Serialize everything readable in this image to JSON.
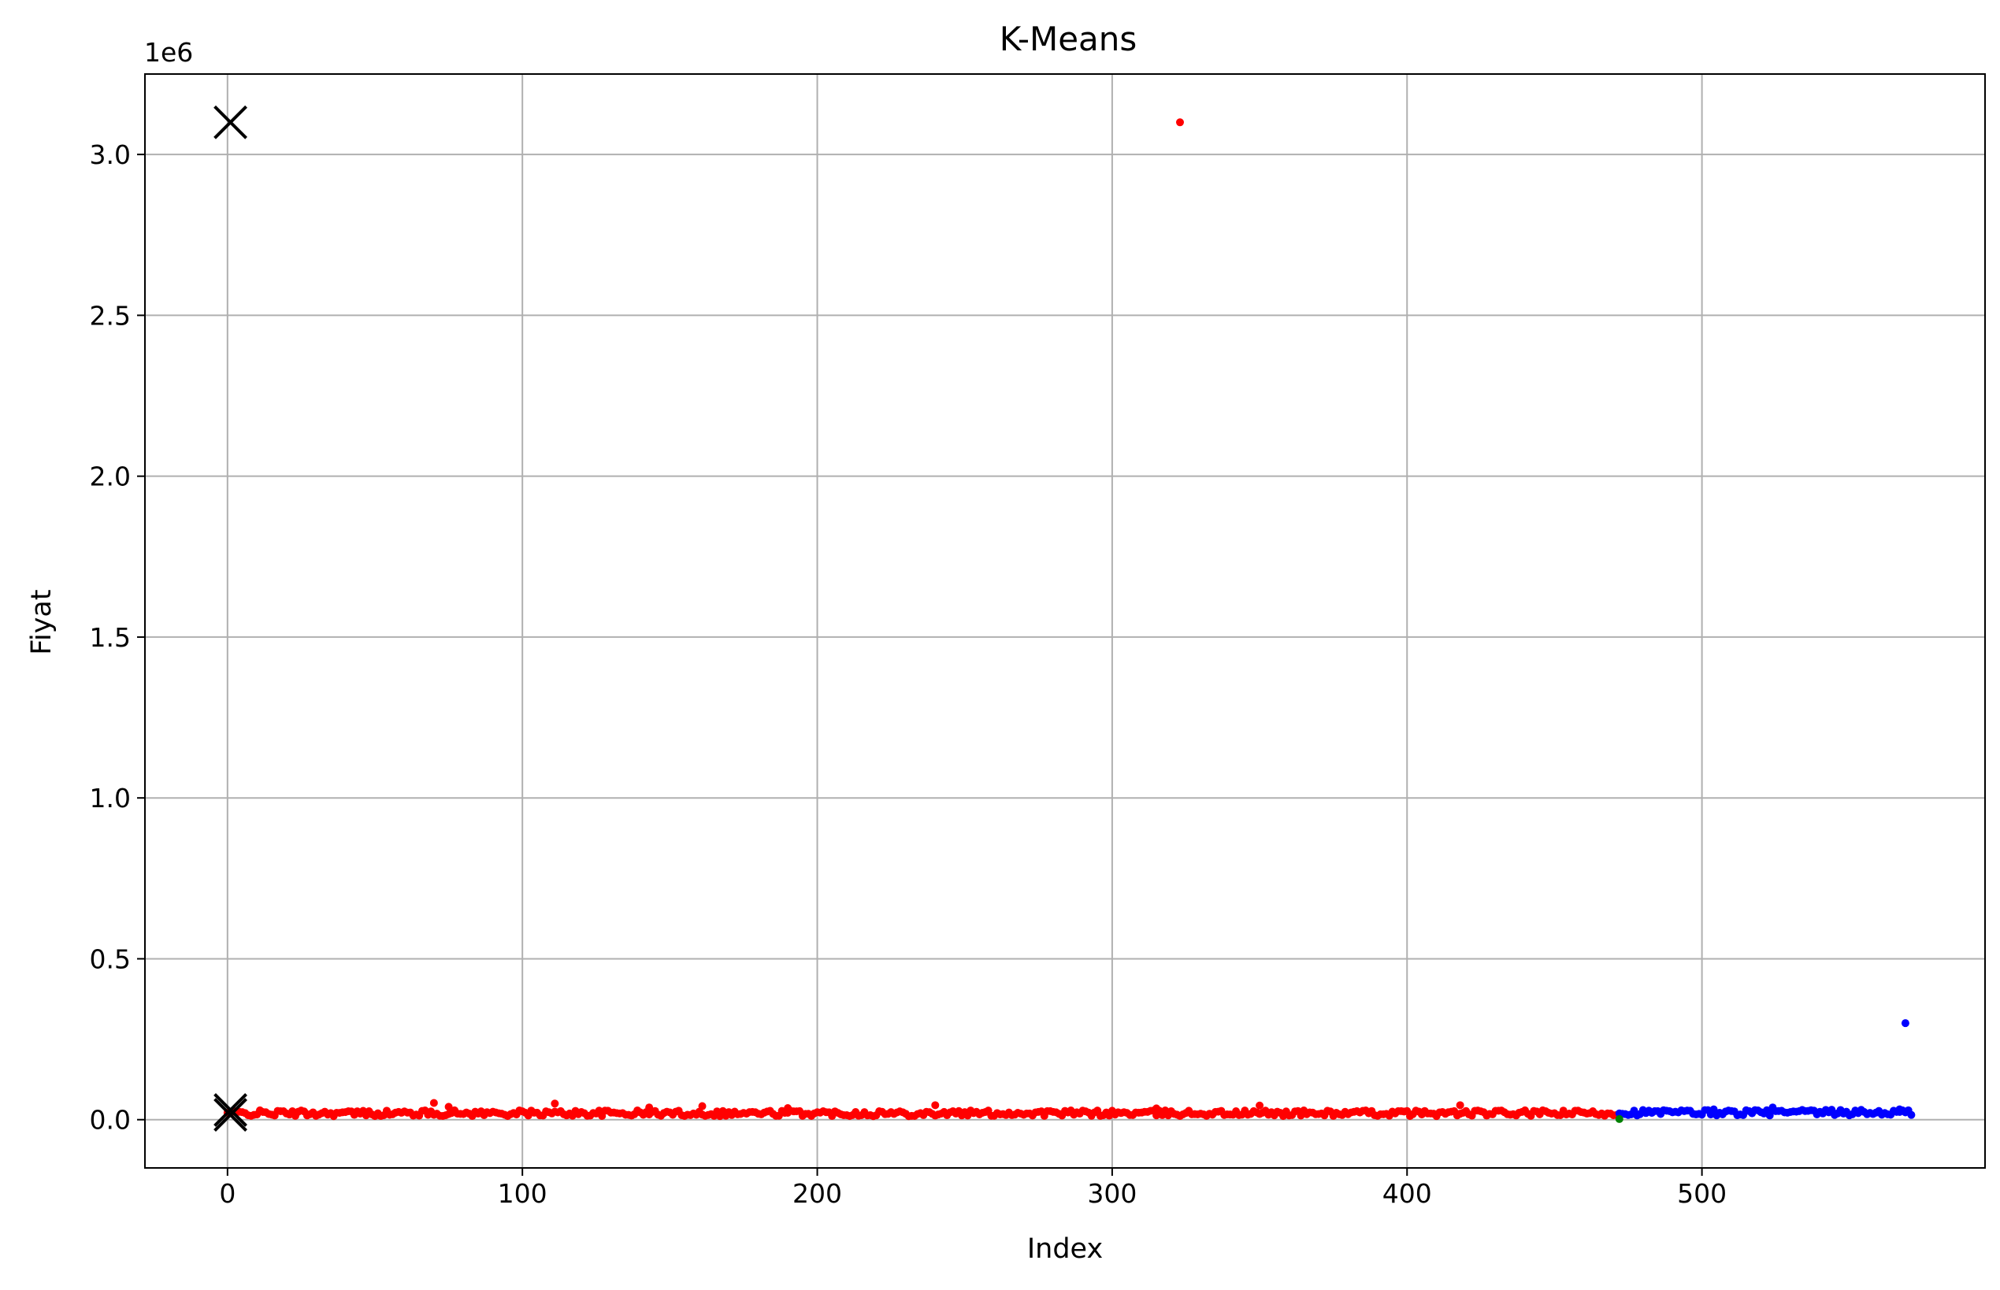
{
  "chart_data": {
    "type": "scatter",
    "title": "K-Means",
    "xlabel": "Index",
    "ylabel": "Fiyat",
    "y_offset_label": "1e6",
    "xlim": [
      -28,
      596
    ],
    "ylim": [
      -150000,
      3250000
    ],
    "x_ticks": [
      0,
      100,
      200,
      300,
      400,
      500
    ],
    "x_tick_labels": [
      "0",
      "100",
      "200",
      "300",
      "400",
      "500"
    ],
    "y_ticks": [
      0,
      500000,
      1000000,
      1500000,
      2000000,
      2500000,
      3000000
    ],
    "y_tick_labels": [
      "0.0",
      "0.5",
      "1.0",
      "1.5",
      "2.0",
      "2.5",
      "3.0"
    ],
    "grid": true,
    "colors": {
      "cluster_a": "#ff0000",
      "cluster_b": "#0000ff",
      "cluster_c": "#008000",
      "centroid": "#000000"
    },
    "series": [
      {
        "color": "#ff0000",
        "x_range": [
          0,
          471
        ],
        "baseline": 20000,
        "spread": 9000,
        "extra_points": [
          [
            70,
            52000
          ],
          [
            75,
            40000
          ],
          [
            111,
            50000
          ],
          [
            143,
            38000
          ],
          [
            161,
            42000
          ],
          [
            190,
            36000
          ],
          [
            240,
            45000
          ],
          [
            315,
            35000
          ],
          [
            323,
            3100000
          ],
          [
            350,
            44000
          ],
          [
            418,
            45000
          ]
        ]
      },
      {
        "color": "#0000ff",
        "x_range": [
          472,
          571
        ],
        "baseline": 22000,
        "spread": 9000,
        "extra_points": [
          [
            504,
            32000
          ],
          [
            524,
            38000
          ],
          [
            567,
            32000
          ],
          [
            569,
            300000
          ]
        ]
      },
      {
        "color": "#008000",
        "points": [
          [
            472,
            2000
          ]
        ]
      }
    ],
    "centroids": [
      {
        "x": 1,
        "y": 3100000
      },
      {
        "x": 1,
        "y": 30000
      },
      {
        "x": 1,
        "y": 15000
      }
    ]
  }
}
